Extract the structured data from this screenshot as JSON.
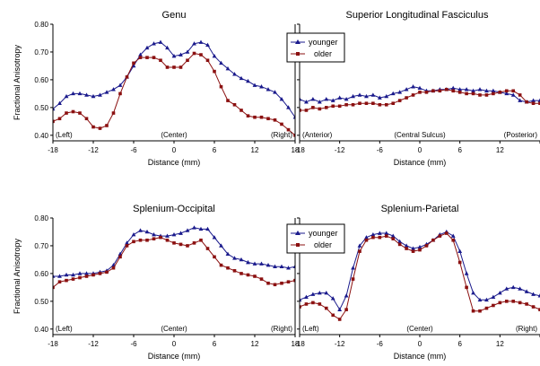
{
  "chart_data": [
    {
      "type": "line",
      "title": "Genu",
      "xlabel": "Distance (mm)",
      "ylabel": "Fractional Anisotropy",
      "xlim": [
        -18,
        18
      ],
      "ylim": [
        0.38,
        0.8
      ],
      "xticks": [
        "-18",
        "-12",
        "-6",
        "0",
        "6",
        "12",
        "18"
      ],
      "yticks": [
        "0.80",
        "0.70",
        "0.60",
        "0.50",
        "0.40"
      ],
      "annotations": [
        "(Left)",
        "(Center)",
        "(Right)"
      ],
      "grid": false,
      "legend": "none",
      "x": [
        -18,
        -17,
        -16,
        -15,
        -14,
        -13,
        -12,
        -11,
        -10,
        -9,
        -8,
        -7,
        -6,
        -5,
        -4,
        -3,
        -2,
        -1,
        0,
        1,
        2,
        3,
        4,
        5,
        6,
        7,
        8,
        9,
        10,
        11,
        12,
        13,
        14,
        15,
        16,
        17,
        18
      ],
      "series": [
        {
          "name": "younger",
          "color": "#1a1a8c",
          "marker": "triangle",
          "values": [
            0.495,
            0.515,
            0.54,
            0.55,
            0.55,
            0.545,
            0.54,
            0.545,
            0.555,
            0.565,
            0.58,
            0.61,
            0.65,
            0.69,
            0.715,
            0.73,
            0.735,
            0.715,
            0.685,
            0.69,
            0.7,
            0.73,
            0.735,
            0.725,
            0.685,
            0.66,
            0.64,
            0.62,
            0.605,
            0.595,
            0.58,
            0.575,
            0.565,
            0.555,
            0.53,
            0.5,
            0.465
          ]
        },
        {
          "name": "older",
          "color": "#8b1010",
          "marker": "square",
          "values": [
            0.45,
            0.46,
            0.48,
            0.485,
            0.48,
            0.46,
            0.43,
            0.425,
            0.435,
            0.48,
            0.55,
            0.61,
            0.66,
            0.68,
            0.68,
            0.68,
            0.67,
            0.645,
            0.645,
            0.645,
            0.67,
            0.695,
            0.69,
            0.67,
            0.63,
            0.575,
            0.525,
            0.51,
            0.49,
            0.47,
            0.465,
            0.465,
            0.46,
            0.455,
            0.44,
            0.42,
            0.4
          ]
        }
      ]
    },
    {
      "type": "line",
      "title": "Superior Longitudinal Fasciculus",
      "xlabel": "Distance (mm)",
      "ylabel": "",
      "xlim": [
        -18,
        18
      ],
      "ylim": [
        0.38,
        0.8
      ],
      "xticks": [
        "-18",
        "-12",
        "-6",
        "0",
        "6",
        "12",
        "18"
      ],
      "annotations": [
        "(Anterior)",
        "(Central Sulcus)",
        "(Posterior)"
      ],
      "grid": false,
      "legend": "top-left",
      "legend_entries": [
        "younger",
        "older"
      ],
      "x": [
        -18,
        -17,
        -16,
        -15,
        -14,
        -13,
        -12,
        -11,
        -10,
        -9,
        -8,
        -7,
        -6,
        -5,
        -4,
        -3,
        -2,
        -1,
        0,
        1,
        2,
        3,
        4,
        5,
        6,
        7,
        8,
        9,
        10,
        11,
        12,
        13,
        14,
        15,
        16,
        17,
        18
      ],
      "series": [
        {
          "name": "younger",
          "color": "#1a1a8c",
          "marker": "triangle",
          "values": [
            0.53,
            0.52,
            0.53,
            0.52,
            0.53,
            0.525,
            0.535,
            0.53,
            0.54,
            0.545,
            0.54,
            0.545,
            0.535,
            0.54,
            0.55,
            0.555,
            0.565,
            0.575,
            0.57,
            0.56,
            0.56,
            0.565,
            0.565,
            0.57,
            0.565,
            0.565,
            0.56,
            0.565,
            0.56,
            0.56,
            0.555,
            0.55,
            0.545,
            0.525,
            0.52,
            0.525,
            0.525
          ]
        },
        {
          "name": "older",
          "color": "#8b1010",
          "marker": "square",
          "values": [
            0.49,
            0.49,
            0.5,
            0.495,
            0.5,
            0.505,
            0.505,
            0.51,
            0.51,
            0.515,
            0.515,
            0.515,
            0.51,
            0.51,
            0.515,
            0.525,
            0.535,
            0.545,
            0.555,
            0.555,
            0.56,
            0.56,
            0.565,
            0.56,
            0.555,
            0.55,
            0.55,
            0.545,
            0.545,
            0.55,
            0.555,
            0.56,
            0.56,
            0.545,
            0.52,
            0.515,
            0.515
          ]
        }
      ]
    },
    {
      "type": "line",
      "title": "Splenium-Occipital",
      "xlabel": "Distance (mm)",
      "ylabel": "Fractional Anisotropy",
      "xlim": [
        -18,
        18
      ],
      "ylim": [
        0.38,
        0.8
      ],
      "xticks": [
        "-18",
        "-12",
        "-6",
        "0",
        "6",
        "12",
        "18"
      ],
      "yticks": [
        "0.80",
        "0.70",
        "0.60",
        "0.50",
        "0.40"
      ],
      "annotations": [
        "(Left)",
        "(Center)",
        "(Right)"
      ],
      "grid": false,
      "legend": "none",
      "x": [
        -18,
        -17,
        -16,
        -15,
        -14,
        -13,
        -12,
        -11,
        -10,
        -9,
        -8,
        -7,
        -6,
        -5,
        -4,
        -3,
        -2,
        -1,
        0,
        1,
        2,
        3,
        4,
        5,
        6,
        7,
        8,
        9,
        10,
        11,
        12,
        13,
        14,
        15,
        16,
        17,
        18
      ],
      "series": [
        {
          "name": "younger",
          "color": "#1a1a8c",
          "marker": "triangle",
          "values": [
            0.59,
            0.59,
            0.595,
            0.595,
            0.6,
            0.6,
            0.6,
            0.605,
            0.61,
            0.63,
            0.67,
            0.71,
            0.74,
            0.755,
            0.75,
            0.74,
            0.735,
            0.735,
            0.74,
            0.745,
            0.755,
            0.765,
            0.76,
            0.76,
            0.73,
            0.7,
            0.67,
            0.655,
            0.65,
            0.64,
            0.635,
            0.635,
            0.63,
            0.625,
            0.625,
            0.62,
            0.625
          ]
        },
        {
          "name": "older",
          "color": "#8b1010",
          "marker": "square",
          "values": [
            0.55,
            0.57,
            0.575,
            0.58,
            0.585,
            0.59,
            0.595,
            0.6,
            0.605,
            0.62,
            0.66,
            0.7,
            0.715,
            0.72,
            0.72,
            0.725,
            0.73,
            0.72,
            0.71,
            0.705,
            0.7,
            0.71,
            0.72,
            0.69,
            0.66,
            0.63,
            0.62,
            0.61,
            0.6,
            0.595,
            0.59,
            0.58,
            0.565,
            0.56,
            0.565,
            0.57,
            0.575
          ]
        }
      ]
    },
    {
      "type": "line",
      "title": "Splenium-Parietal",
      "xlabel": "Distance (mm)",
      "ylabel": "",
      "xlim": [
        -18,
        18
      ],
      "ylim": [
        0.38,
        0.8
      ],
      "xticks": [
        "-18",
        "-12",
        "-6",
        "0",
        "6",
        "12",
        "18"
      ],
      "annotations": [
        "(Left)",
        "(Center)",
        "(Right)"
      ],
      "grid": false,
      "legend": "top-left",
      "legend_entries": [
        "younger",
        "older"
      ],
      "x": [
        -18,
        -17,
        -16,
        -15,
        -14,
        -13,
        -12,
        -11,
        -10,
        -9,
        -8,
        -7,
        -6,
        -5,
        -4,
        -3,
        -2,
        -1,
        0,
        1,
        2,
        3,
        4,
        5,
        6,
        7,
        8,
        9,
        10,
        11,
        12,
        13,
        14,
        15,
        16,
        17,
        18
      ],
      "series": [
        {
          "name": "younger",
          "color": "#1a1a8c",
          "marker": "triangle",
          "values": [
            0.505,
            0.515,
            0.525,
            0.53,
            0.53,
            0.51,
            0.47,
            0.52,
            0.62,
            0.7,
            0.73,
            0.74,
            0.745,
            0.745,
            0.735,
            0.715,
            0.7,
            0.69,
            0.695,
            0.705,
            0.72,
            0.74,
            0.75,
            0.735,
            0.68,
            0.6,
            0.53,
            0.505,
            0.505,
            0.515,
            0.53,
            0.545,
            0.55,
            0.545,
            0.535,
            0.525,
            0.52
          ]
        },
        {
          "name": "older",
          "color": "#8b1010",
          "marker": "square",
          "values": [
            0.48,
            0.49,
            0.495,
            0.49,
            0.475,
            0.45,
            0.435,
            0.47,
            0.58,
            0.68,
            0.72,
            0.73,
            0.73,
            0.735,
            0.725,
            0.705,
            0.69,
            0.68,
            0.685,
            0.7,
            0.72,
            0.735,
            0.745,
            0.72,
            0.64,
            0.55,
            0.465,
            0.465,
            0.475,
            0.485,
            0.495,
            0.5,
            0.5,
            0.495,
            0.49,
            0.48,
            0.47
          ]
        }
      ]
    }
  ]
}
